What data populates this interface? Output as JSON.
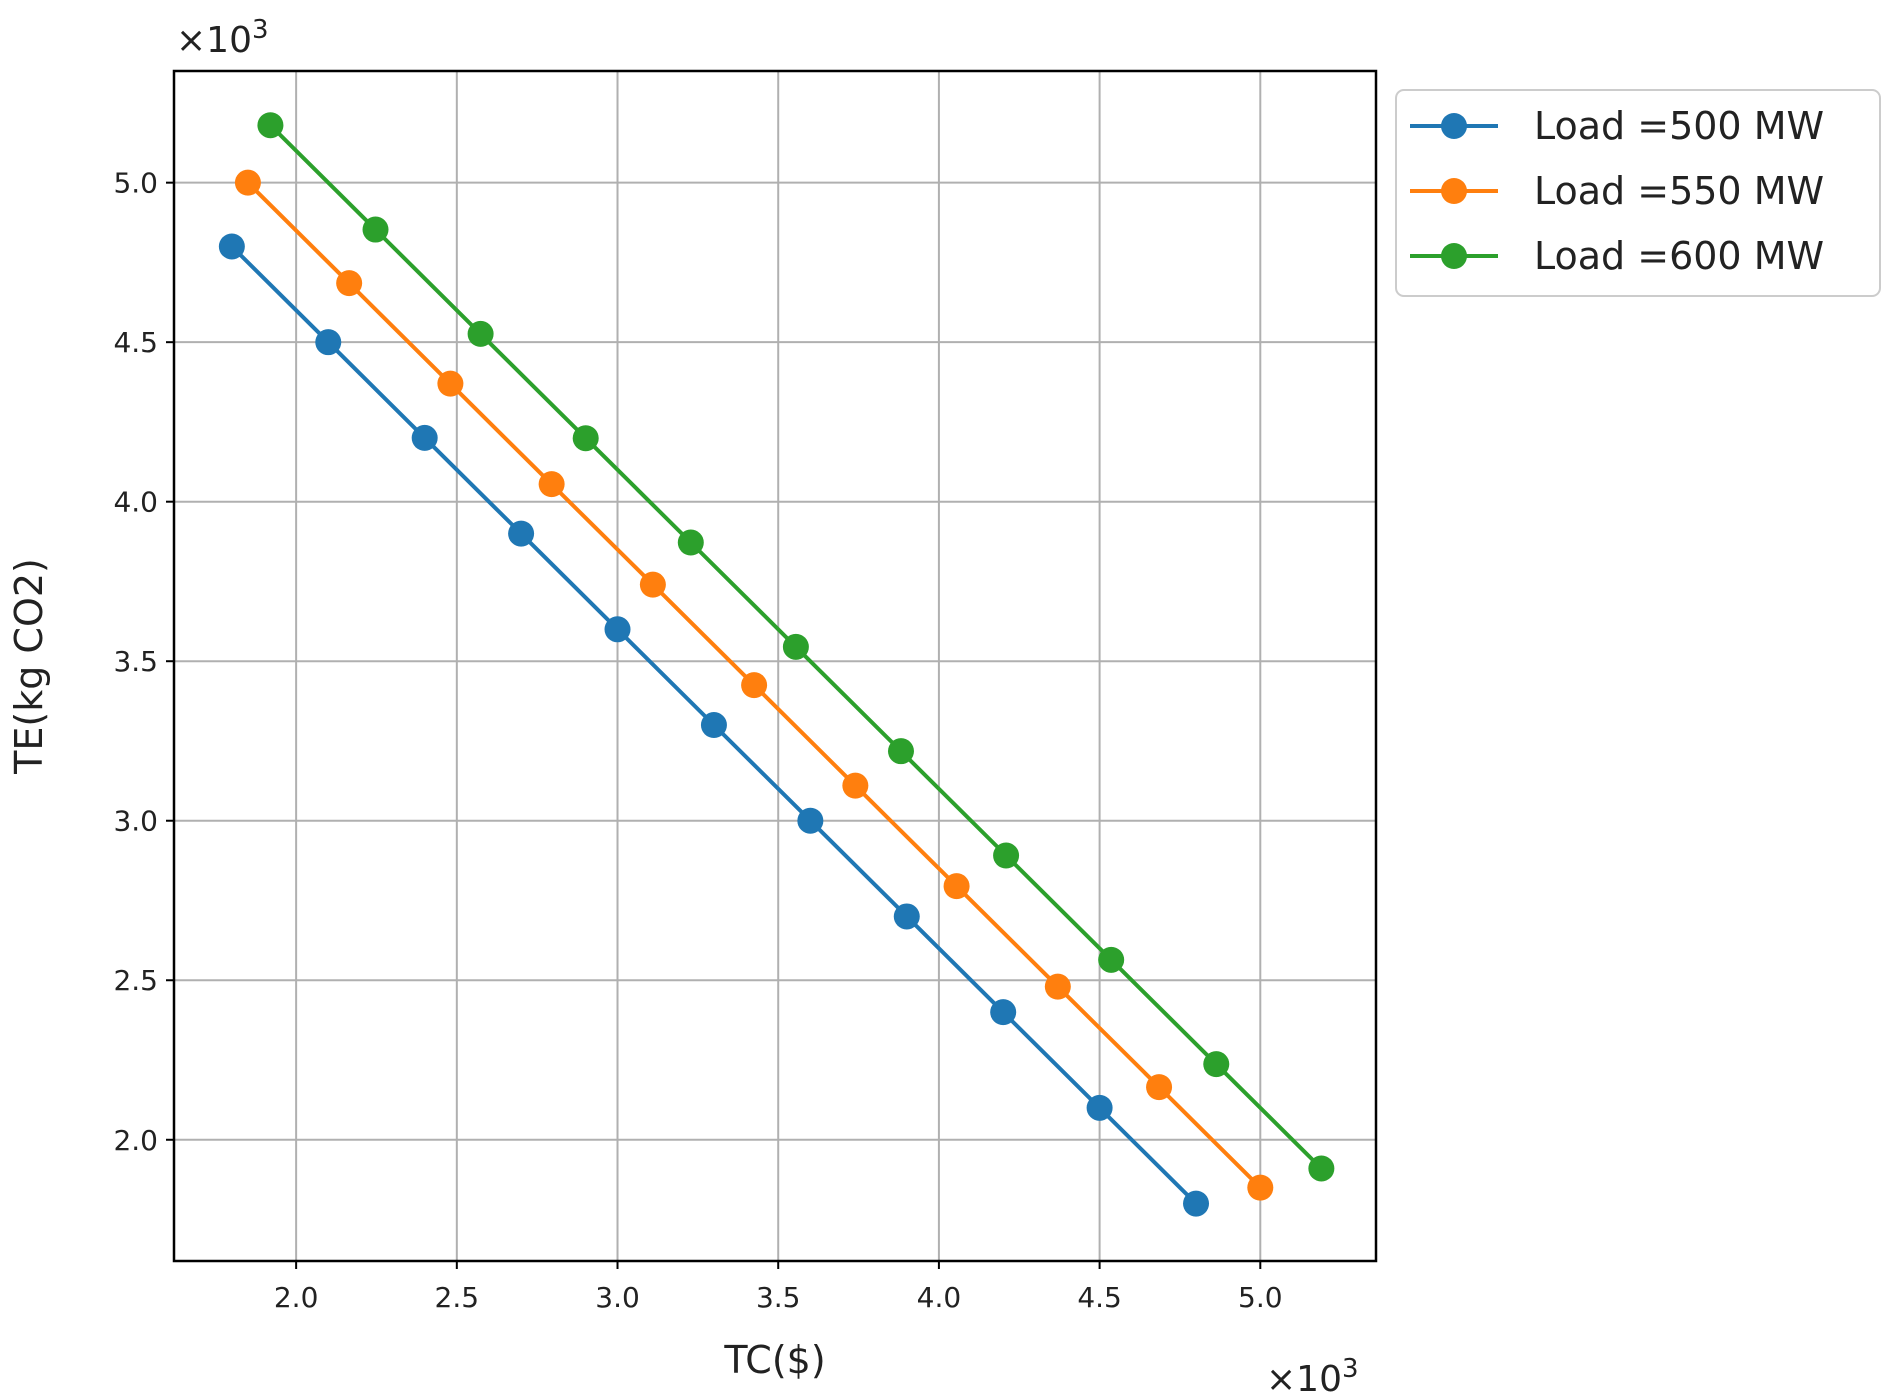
{
  "chart_data": {
    "type": "line",
    "title": "",
    "xlabel": "TC($)",
    "ylabel": "TE(kg CO2)",
    "x_multiplier": "×10",
    "x_multiplier_exp": "3",
    "y_multiplier": "×10",
    "y_multiplier_exp": "3",
    "xlim": [
      1.62,
      5.36
    ],
    "ylim": [
      1.62,
      5.35
    ],
    "xticks": [
      2.0,
      2.5,
      3.0,
      3.5,
      4.0,
      4.5,
      5.0
    ],
    "xtick_labels": [
      "2.0",
      "2.5",
      "3.0",
      "3.5",
      "4.0",
      "4.5",
      "5.0"
    ],
    "yticks": [
      2.0,
      2.5,
      3.0,
      3.5,
      4.0,
      4.5,
      5.0
    ],
    "ytick_labels": [
      "2.0",
      "2.5",
      "3.0",
      "3.5",
      "4.0",
      "4.5",
      "5.0"
    ],
    "grid": true,
    "legend_position": "outside-top-right",
    "series": [
      {
        "name": "Load =500 MW",
        "color": "#1f77b4",
        "x": [
          1.8,
          2.1,
          2.4,
          2.7,
          3.0,
          3.3,
          3.6,
          3.9,
          4.2,
          4.5,
          4.8
        ],
        "y": [
          4.8,
          4.5,
          4.2,
          3.9,
          3.6,
          3.3,
          3.0,
          2.7,
          2.4,
          2.1,
          1.8
        ]
      },
      {
        "name": "Load =550 MW",
        "color": "#ff7f0e",
        "x": [
          1.85,
          2.165,
          2.48,
          2.795,
          3.11,
          3.425,
          3.74,
          4.055,
          4.37,
          4.685,
          5.0
        ],
        "y": [
          5.0,
          4.685,
          4.37,
          4.055,
          3.74,
          3.425,
          3.11,
          2.795,
          2.48,
          2.165,
          1.85
        ]
      },
      {
        "name": "Load =600 MW",
        "color": "#2ca02c",
        "x": [
          1.92,
          2.247,
          2.574,
          2.901,
          3.228,
          3.555,
          3.882,
          4.209,
          4.536,
          4.863,
          5.19
        ],
        "y": [
          5.18,
          4.853,
          4.526,
          4.199,
          3.872,
          3.545,
          3.218,
          2.891,
          2.564,
          2.237,
          1.91
        ]
      }
    ]
  }
}
